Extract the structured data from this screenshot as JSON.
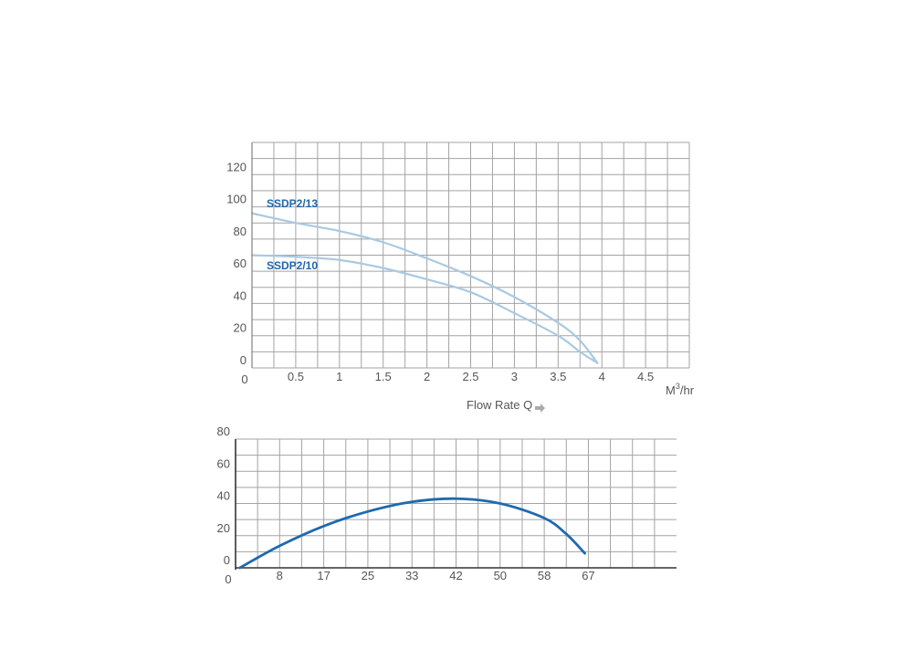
{
  "chart_data": [
    {
      "type": "line",
      "xlabel": "Flow Rate Q",
      "x_unit": "M3/hr",
      "x_unit_base": "M",
      "x_unit_sup": "3",
      "x_unit_rest": "/hr",
      "xlim": [
        0,
        5
      ],
      "ylim": [
        0,
        140
      ],
      "x_ticks": [
        "0",
        "0.5",
        "1",
        "1.5",
        "2",
        "2.5",
        "3",
        "3.5",
        "4",
        "4.5"
      ],
      "x_tick_values": [
        0,
        0.5,
        1,
        1.5,
        2,
        2.5,
        3,
        3.5,
        4,
        4.5
      ],
      "y_ticks": [
        "0",
        "20",
        "40",
        "60",
        "80",
        "100",
        "120"
      ],
      "y_tick_values": [
        0,
        20,
        40,
        60,
        80,
        100,
        120
      ],
      "grid": true,
      "grid_x_step": 0.25,
      "grid_y_step": 10,
      "colors": {
        "curve": "#a9c9e2",
        "label": "#1f66ad",
        "grid": "#a3a3a3",
        "arrow": "#aaaaaa"
      },
      "series": [
        {
          "name": "SSDP2/13",
          "x": [
            0,
            0.5,
            1,
            1.5,
            2,
            2.5,
            3,
            3.5,
            3.75,
            3.95
          ],
          "y": [
            96,
            90,
            85,
            78,
            68,
            57,
            44,
            28,
            17,
            3
          ]
        },
        {
          "name": "SSDP2/10",
          "x": [
            0,
            0.5,
            1,
            1.5,
            2,
            2.5,
            3,
            3.5,
            3.75,
            3.95
          ],
          "y": [
            70,
            69,
            67,
            62,
            55,
            47,
            34,
            20,
            10,
            3
          ]
        }
      ]
    },
    {
      "type": "line",
      "xlim": [
        0,
        83.33
      ],
      "ylim": [
        0,
        80
      ],
      "x_ticks": [
        "0",
        "8",
        "17",
        "25",
        "33",
        "42",
        "50",
        "58",
        "67"
      ],
      "x_tick_values": [
        0,
        8.33,
        16.67,
        25,
        33.33,
        41.67,
        50,
        58.33,
        66.67
      ],
      "y_ticks": [
        "0",
        "20",
        "40",
        "60",
        "80"
      ],
      "y_tick_values": [
        0,
        20,
        40,
        60,
        80
      ],
      "grid": true,
      "grid_x_step": 4.1667,
      "grid_y_step": 10,
      "colors": {
        "curve": "#1e6aae",
        "grid": "#a3a3a3",
        "axis": "#333333"
      },
      "series": [
        {
          "x": [
            0.8,
            8.3,
            16.7,
            25,
            33.3,
            41.7,
            50,
            58.3,
            62.5,
            66
          ],
          "y": [
            0,
            13.6,
            26,
            35,
            41,
            43,
            40,
            31,
            21,
            9
          ]
        }
      ]
    }
  ]
}
